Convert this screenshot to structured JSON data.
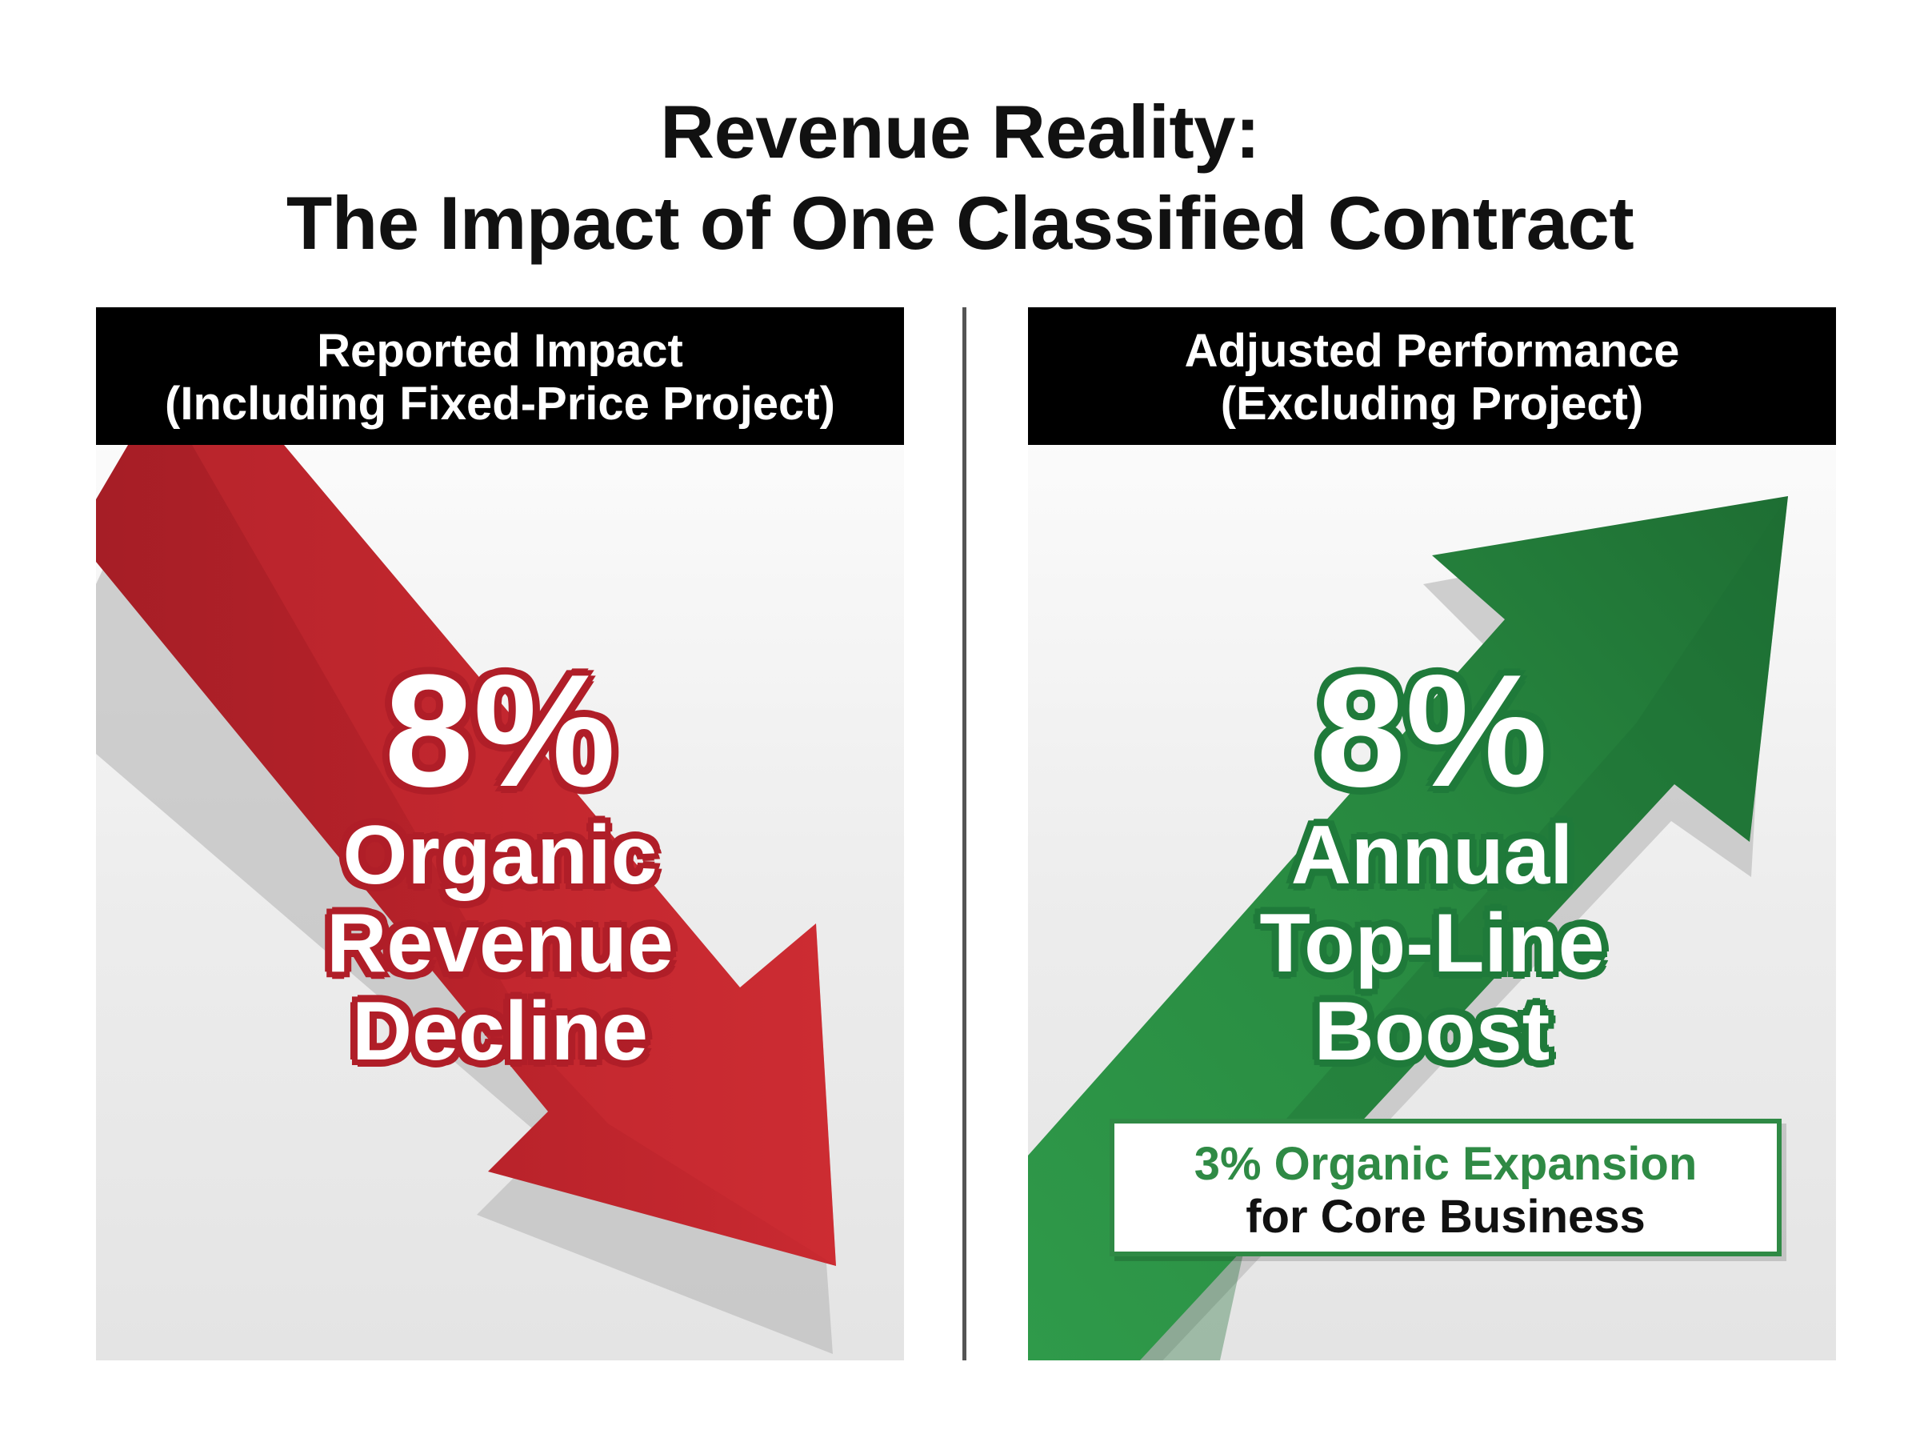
{
  "title": {
    "line1": "Revenue Reality:",
    "line2": "The Impact of One Classified Contract"
  },
  "left_panel": {
    "header_line1": "Reported Impact",
    "header_line2": "(Including Fixed-Price Project)",
    "percent": "8%",
    "label_line1": "Organic",
    "label_line2": "Revenue",
    "label_line3": "Decline",
    "arrow_direction": "down",
    "arrow_color": "#c1272d"
  },
  "right_panel": {
    "header_line1": "Adjusted Performance",
    "header_line2": "(Excluding Project)",
    "percent": "8%",
    "label_line1": "Annual",
    "label_line2": "Top-Line",
    "label_line3": "Boost",
    "arrow_direction": "up",
    "arrow_color": "#2a8a43",
    "callout_line1": "3% Organic Expansion",
    "callout_line2": "for Core Business"
  }
}
